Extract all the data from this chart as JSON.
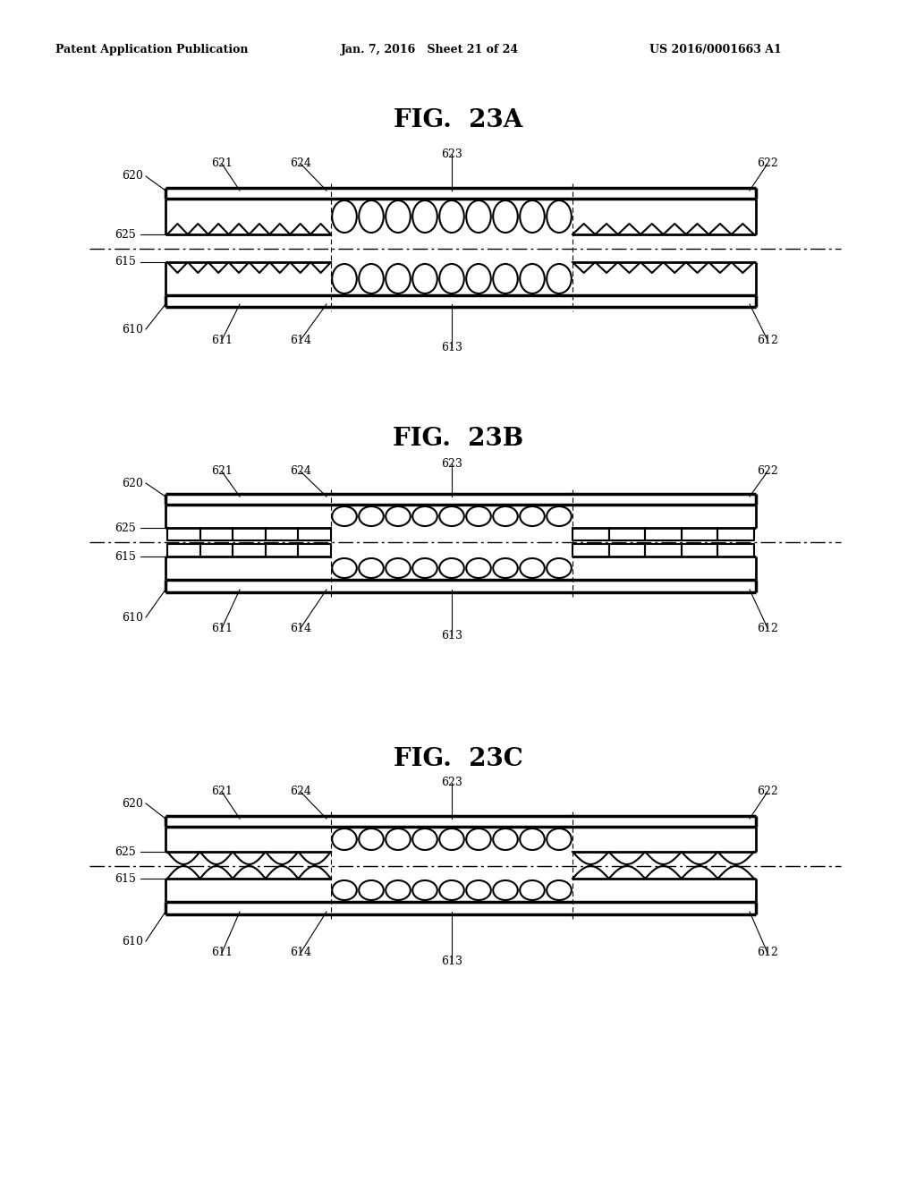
{
  "header_left": "Patent Application Publication",
  "header_mid": "Jan. 7, 2016   Sheet 21 of 24",
  "header_right": "US 2016/0001663 A1",
  "bg_color": "#ffffff",
  "line_color": "#000000"
}
